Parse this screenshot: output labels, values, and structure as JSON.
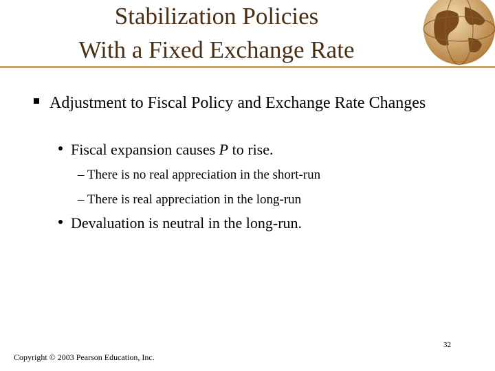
{
  "title": {
    "lines": [
      "Stabilization Policies",
      "With a Fixed Exchange Rate"
    ]
  },
  "bullets": [
    {
      "text": "Adjustment to Fiscal Policy and Exchange Rate Changes",
      "items": [
        {
          "segments": [
            "Fiscal expansion causes ",
            "P",
            " to rise."
          ],
          "items": [
            "There is no real appreciation in the short-run",
            "There is real appreciation in the long-run"
          ]
        },
        {
          "segments": [
            "Devaluation is neutral in the long-run."
          ]
        }
      ]
    }
  ],
  "page_number": "32",
  "footer": "Copyright © 2003 Pearson Education, Inc."
}
